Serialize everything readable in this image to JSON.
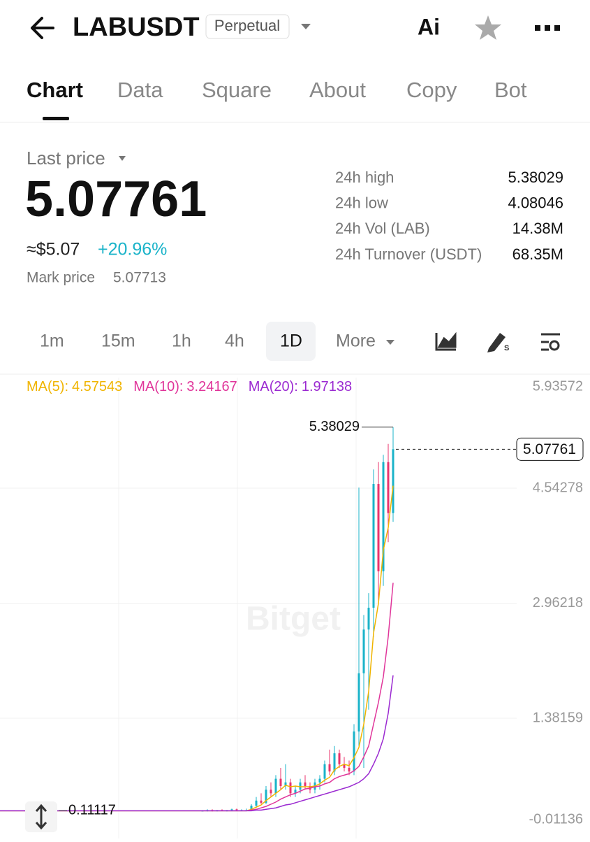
{
  "header": {
    "symbol": "LABUSDT",
    "badge": "Perpetual",
    "ai": "Ai"
  },
  "tabs": [
    "Chart",
    "Data",
    "Square",
    "About",
    "Copy",
    "Bot"
  ],
  "price": {
    "label": "Last price",
    "last": "5.07761",
    "usd": "≈$5.07",
    "change": "+20.96%",
    "mark_label": "Mark price",
    "mark": "5.07713"
  },
  "stats": [
    {
      "label": "24h high",
      "value": "5.38029"
    },
    {
      "label": "24h low",
      "value": "4.08046"
    },
    {
      "label": "24h Vol (LAB)",
      "value": "14.38M"
    },
    {
      "label": "24h Turnover (USDT)",
      "value": "68.35M"
    }
  ],
  "intervals": [
    "1m",
    "15m",
    "1h",
    "4h",
    "1D",
    "More"
  ],
  "chart": {
    "type": "candlestick",
    "watermark": "Bitget",
    "ylim": [
      -0.01136,
      5.93572
    ],
    "yticks": [
      5.93572,
      4.54278,
      2.96218,
      1.38159,
      -0.01136
    ],
    "up_color": "#1ab3c9",
    "down_color": "#e8336d",
    "high_label": 5.38029,
    "low_label": 0.11117,
    "current": 5.07761,
    "candles": [
      {
        "open": 0.11,
        "high": 0.12,
        "low": 0.1,
        "close": 0.11
      },
      {
        "open": 0.11,
        "high": 0.13,
        "low": 0.1,
        "close": 0.12
      },
      {
        "open": 0.12,
        "high": 0.13,
        "low": 0.1,
        "close": 0.11
      },
      {
        "open": 0.11,
        "high": 0.12,
        "low": 0.1,
        "close": 0.12
      },
      {
        "open": 0.12,
        "high": 0.13,
        "low": 0.11,
        "close": 0.11
      },
      {
        "open": 0.11,
        "high": 0.12,
        "low": 0.1,
        "close": 0.12
      },
      {
        "open": 0.12,
        "high": 0.14,
        "low": 0.11,
        "close": 0.13
      },
      {
        "open": 0.13,
        "high": 0.14,
        "low": 0.11,
        "close": 0.12
      },
      {
        "open": 0.12,
        "high": 0.13,
        "low": 0.11,
        "close": 0.12
      },
      {
        "open": 0.12,
        "high": 0.14,
        "low": 0.11,
        "close": 0.12
      },
      {
        "open": 0.12,
        "high": 0.2,
        "low": 0.11,
        "close": 0.18
      },
      {
        "open": 0.18,
        "high": 0.3,
        "low": 0.15,
        "close": 0.25
      },
      {
        "open": 0.25,
        "high": 0.35,
        "low": 0.2,
        "close": 0.22
      },
      {
        "open": 0.22,
        "high": 0.45,
        "low": 0.2,
        "close": 0.4
      },
      {
        "open": 0.4,
        "high": 0.5,
        "low": 0.3,
        "close": 0.35
      },
      {
        "open": 0.35,
        "high": 0.6,
        "low": 0.3,
        "close": 0.55
      },
      {
        "open": 0.55,
        "high": 0.7,
        "low": 0.4,
        "close": 0.45
      },
      {
        "open": 0.45,
        "high": 0.75,
        "low": 0.4,
        "close": 0.5
      },
      {
        "open": 0.5,
        "high": 0.55,
        "low": 0.3,
        "close": 0.35
      },
      {
        "open": 0.35,
        "high": 0.45,
        "low": 0.3,
        "close": 0.4
      },
      {
        "open": 0.4,
        "high": 0.55,
        "low": 0.35,
        "close": 0.5
      },
      {
        "open": 0.5,
        "high": 0.6,
        "low": 0.4,
        "close": 0.45
      },
      {
        "open": 0.45,
        "high": 0.5,
        "low": 0.35,
        "close": 0.4
      },
      {
        "open": 0.4,
        "high": 0.55,
        "low": 0.35,
        "close": 0.5
      },
      {
        "open": 0.5,
        "high": 0.6,
        "low": 0.4,
        "close": 0.55
      },
      {
        "open": 0.55,
        "high": 0.8,
        "low": 0.5,
        "close": 0.75
      },
      {
        "open": 0.75,
        "high": 0.95,
        "low": 0.6,
        "close": 0.65
      },
      {
        "open": 0.65,
        "high": 1.0,
        "low": 0.6,
        "close": 0.9
      },
      {
        "open": 0.9,
        "high": 0.95,
        "low": 0.7,
        "close": 0.75
      },
      {
        "open": 0.75,
        "high": 0.85,
        "low": 0.65,
        "close": 0.7
      },
      {
        "open": 0.7,
        "high": 0.8,
        "low": 0.6,
        "close": 0.65
      },
      {
        "open": 0.65,
        "high": 1.3,
        "low": 0.6,
        "close": 1.2
      },
      {
        "open": 1.2,
        "high": 4.55,
        "low": 1.0,
        "close": 2.0
      },
      {
        "open": 2.0,
        "high": 2.8,
        "low": 0.7,
        "close": 2.6
      },
      {
        "open": 2.6,
        "high": 3.1,
        "low": 1.5,
        "close": 2.9
      },
      {
        "open": 2.9,
        "high": 4.8,
        "low": 2.5,
        "close": 4.6
      },
      {
        "open": 4.6,
        "high": 4.9,
        "low": 3.0,
        "close": 3.4
      },
      {
        "open": 3.4,
        "high": 5.0,
        "low": 3.2,
        "close": 4.9
      },
      {
        "open": 4.9,
        "high": 5.15,
        "low": 3.8,
        "close": 4.2
      },
      {
        "open": 4.2,
        "high": 5.38029,
        "low": 4.08046,
        "close": 5.07761
      }
    ],
    "series": [
      {
        "name": "MA(5):",
        "last": 4.57543,
        "color": "#f0b400",
        "values": [
          0.11,
          0.11,
          0.11,
          0.11,
          0.11,
          0.11,
          0.11,
          0.11,
          0.11,
          0.11,
          0.13,
          0.16,
          0.19,
          0.25,
          0.3,
          0.35,
          0.4,
          0.46,
          0.44,
          0.45,
          0.44,
          0.44,
          0.44,
          0.45,
          0.48,
          0.53,
          0.57,
          0.67,
          0.72,
          0.75,
          0.73,
          0.84,
          0.98,
          1.3,
          1.75,
          2.55,
          2.96,
          3.69,
          4.0,
          4.57543
        ]
      },
      {
        "name": "MA(10):",
        "last": 3.24167,
        "color": "#e0359a",
        "values": [
          0.11,
          0.11,
          0.11,
          0.11,
          0.11,
          0.11,
          0.11,
          0.11,
          0.11,
          0.11,
          0.12,
          0.13,
          0.15,
          0.17,
          0.2,
          0.23,
          0.27,
          0.3,
          0.33,
          0.35,
          0.38,
          0.41,
          0.42,
          0.44,
          0.45,
          0.48,
          0.5,
          0.55,
          0.58,
          0.6,
          0.62,
          0.66,
          0.72,
          0.85,
          1.0,
          1.3,
          1.6,
          1.95,
          2.5,
          3.24167
        ]
      },
      {
        "name": "MA(20):",
        "last": 1.97138,
        "color": "#9b2ad1",
        "values": [
          0.11,
          0.11,
          0.11,
          0.11,
          0.11,
          0.11,
          0.11,
          0.11,
          0.11,
          0.11,
          0.11,
          0.12,
          0.12,
          0.13,
          0.14,
          0.15,
          0.17,
          0.19,
          0.2,
          0.22,
          0.24,
          0.26,
          0.28,
          0.3,
          0.32,
          0.34,
          0.36,
          0.38,
          0.4,
          0.42,
          0.44,
          0.47,
          0.5,
          0.55,
          0.62,
          0.75,
          0.9,
          1.1,
          1.45,
          1.97138
        ]
      }
    ]
  }
}
